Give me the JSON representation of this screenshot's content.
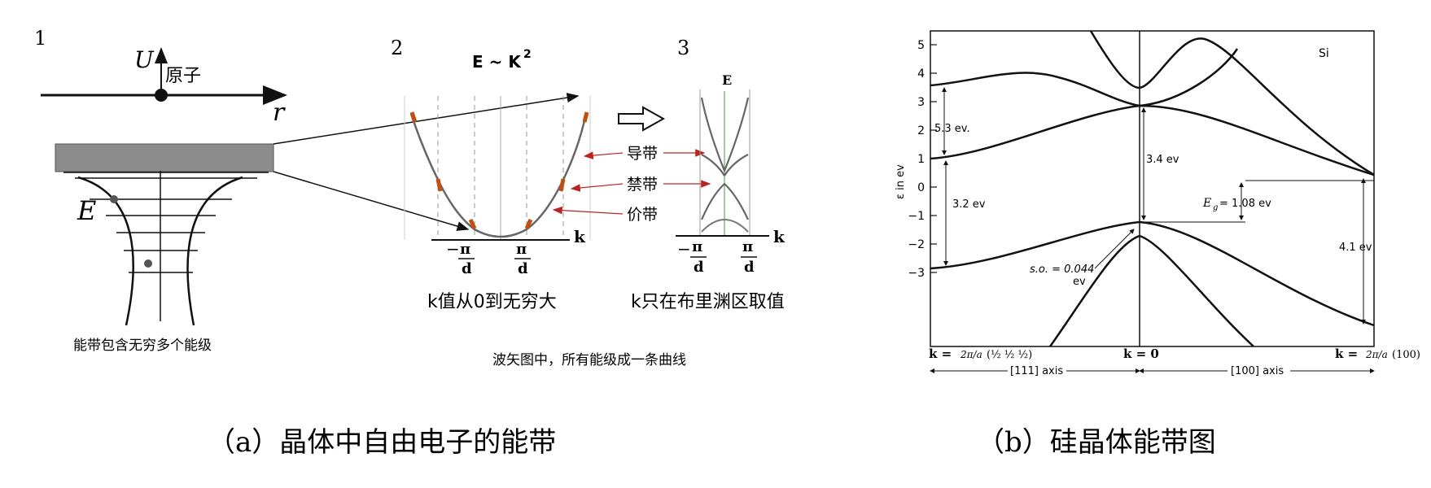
{
  "left_panel": {
    "fig1": {
      "number": "1",
      "u_axis": "U",
      "atom_label": "原子",
      "r_axis": "r",
      "e_label": "E",
      "caption": "能带包含无穷多个能级"
    },
    "fig2": {
      "number": "2",
      "formula_main": "E ~ K",
      "formula_exp": "2",
      "tick_minus": "−",
      "tick_pi": "π",
      "tick_d": "d",
      "k_axis": "k",
      "caption": "k值从0到无穷大"
    },
    "fig3": {
      "number": "3",
      "e_axis": "E",
      "k_axis": "k",
      "caption": "k只在布里渊区取值"
    },
    "band_labels": {
      "conduction": "导带",
      "forbidden": "禁带",
      "valence": "价带"
    },
    "bottom_caption": "波矢图中，所有能级成一条曲线",
    "panel_title": "（a）晶体中自由电子的能带"
  },
  "right_panel": {
    "panel_title": "（b）硅晶体能带图",
    "material": "Si",
    "y_axis_label": "ε in ev",
    "y_ticks": [
      "5",
      "4",
      "3",
      "2",
      "1",
      "0",
      "−1",
      "−2",
      "−3"
    ],
    "annotations": {
      "gap_53": "5.3 ev.",
      "gap_34": "3.4 ev",
      "gap_32": "3.2 ev",
      "eg_symbol": "E",
      "eg_sub": "g",
      "eg_value": "= 1.08 ev",
      "gap_41": "4.1 ev",
      "so_label": "s.o. = 0.044",
      "so_unit": "ev"
    },
    "k_left": "k = ",
    "k_left_frac": "2π/a",
    "k_left_tail": "(½ ½ ½)",
    "k_center": "k = 0",
    "k_right": "k = ",
    "k_right_frac": "2π/a",
    "k_right_tail": "(100)",
    "axis_111": "[111] axis",
    "axis_100": "[100] axis"
  }
}
